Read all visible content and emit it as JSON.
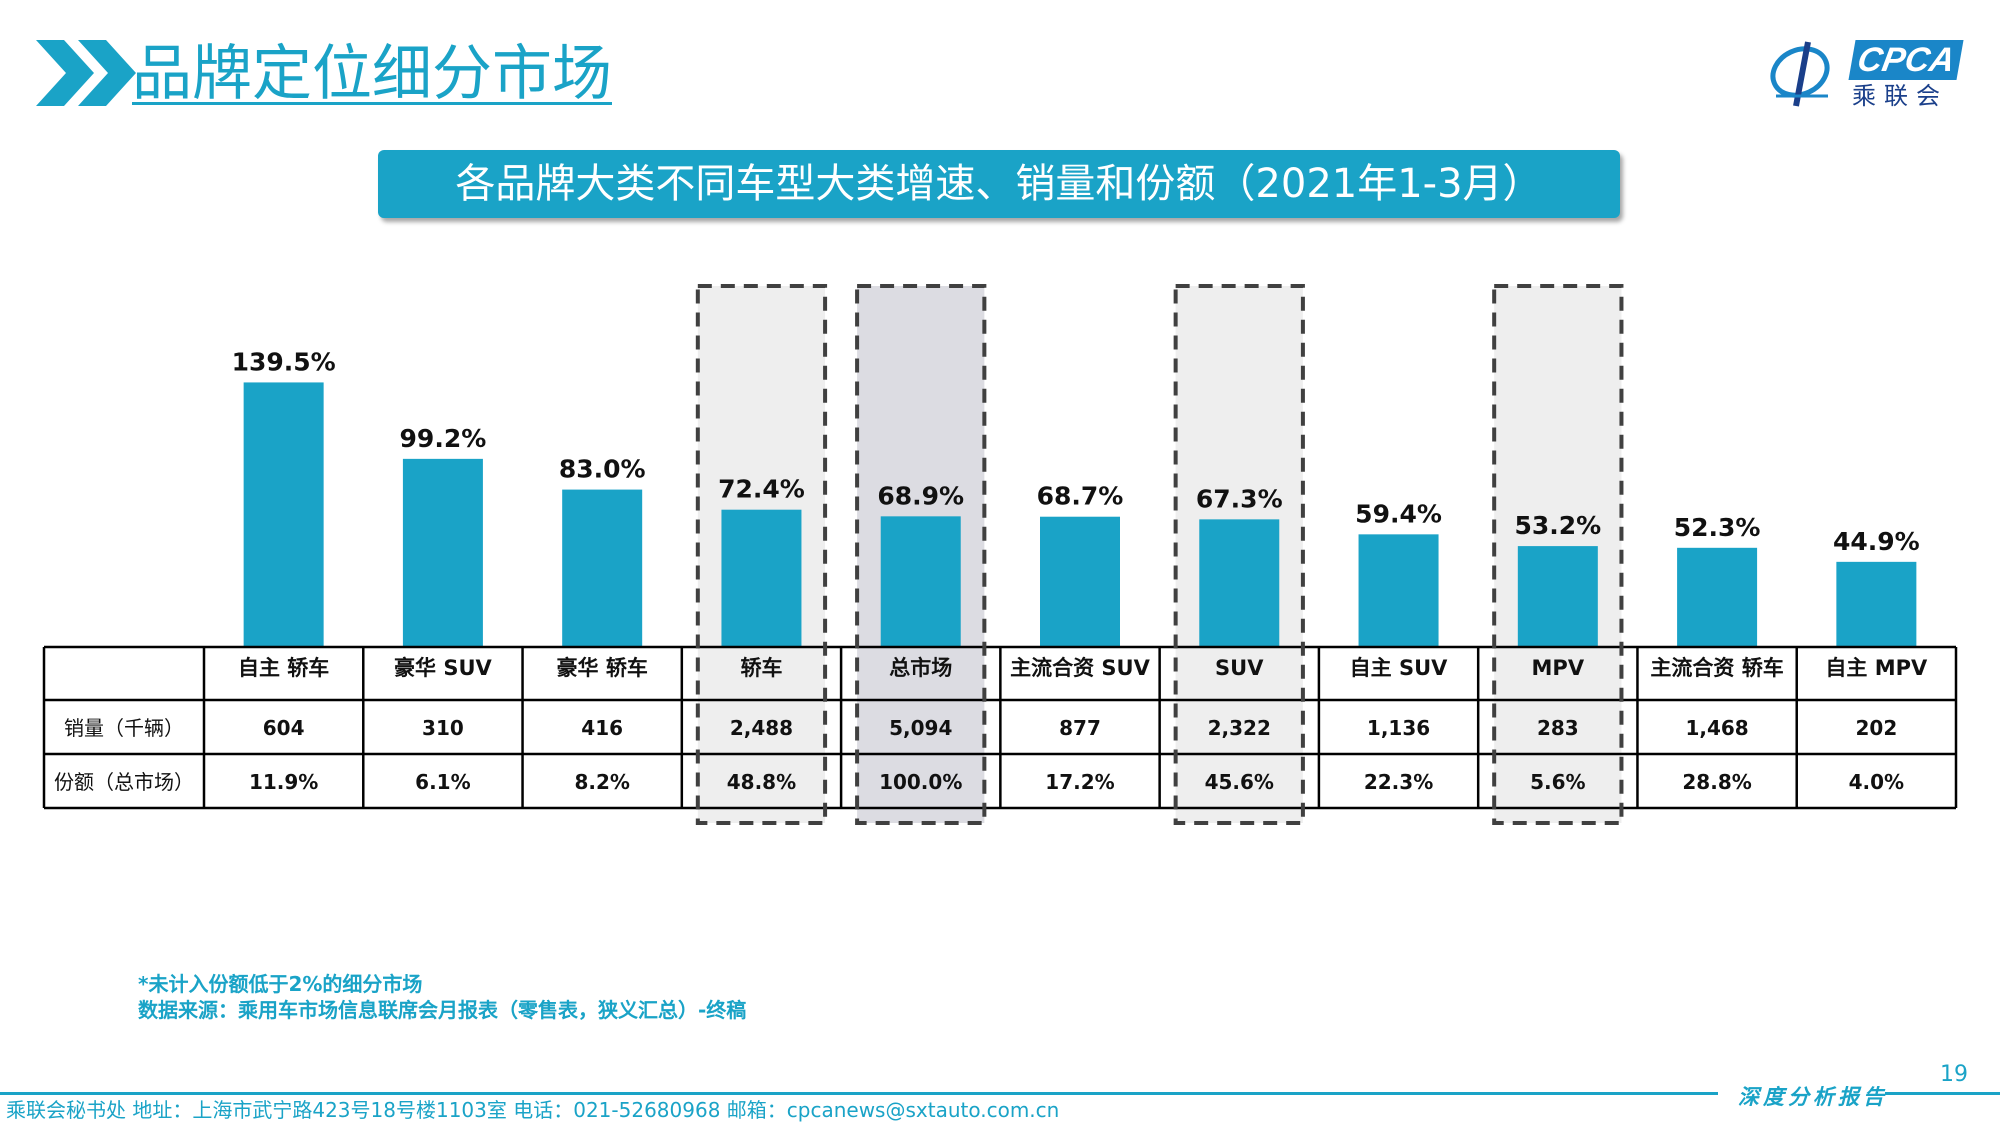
{
  "header": {
    "title": "品牌定位细分市场",
    "logo_text": "CPCA",
    "logo_sub": "乘联会"
  },
  "banner": {
    "text": "各品牌大类不同车型大类增速、销量和份额（2021年1-3月）"
  },
  "colors": {
    "accent": "#1aa3c7",
    "bar": "#1aa3c7",
    "highlight_light": "#eeeeee",
    "highlight_dark": "#dcdce2",
    "dash": "#404040"
  },
  "chart_data": {
    "type": "bar",
    "categories": [
      "自主 轿车",
      "豪华 SUV",
      "豪华 轿车",
      "轿车",
      "总市场",
      "主流合资 SUV",
      "SUV",
      "自主 SUV",
      "MPV",
      "主流合资 轿车",
      "自主 MPV"
    ],
    "values": [
      139.5,
      99.2,
      83.0,
      72.4,
      68.9,
      68.7,
      67.3,
      59.4,
      53.2,
      52.3,
      44.9
    ],
    "data_labels": [
      "139.5%",
      "99.2%",
      "83.0%",
      "72.4%",
      "68.9%",
      "68.7%",
      "67.3%",
      "59.4%",
      "53.2%",
      "52.3%",
      "44.9%"
    ],
    "unit": "%",
    "ylim": [
      0,
      145
    ],
    "highlighted": [
      3,
      4,
      6,
      8
    ],
    "emphasized": [
      4
    ],
    "table": {
      "rows": [
        {
          "label": "销量（千辆）",
          "values": [
            "604",
            "310",
            "416",
            "2,488",
            "5,094",
            "877",
            "2,322",
            "1,136",
            "283",
            "1,468",
            "202"
          ]
        },
        {
          "label": "份额（总市场）",
          "values": [
            "11.9%",
            "6.1%",
            "8.2%",
            "48.8%",
            "100.0%",
            "17.2%",
            "45.6%",
            "22.3%",
            "5.6%",
            "28.8%",
            "4.0%"
          ]
        }
      ]
    }
  },
  "footnotes": {
    "line1": "*未计入份额低于2%的细分市场",
    "line2": "数据来源：乘用车市场信息联席会月报表（零售表，狭义汇总）-终稿"
  },
  "footer": {
    "page_number": "19",
    "contact": "乘联会秘书处   地址：上海市武宁路423号18号楼1103室  电话：021-52680968   邮箱：cpcanews@sxtauto.com.cn",
    "tag": "深度分析报告"
  }
}
